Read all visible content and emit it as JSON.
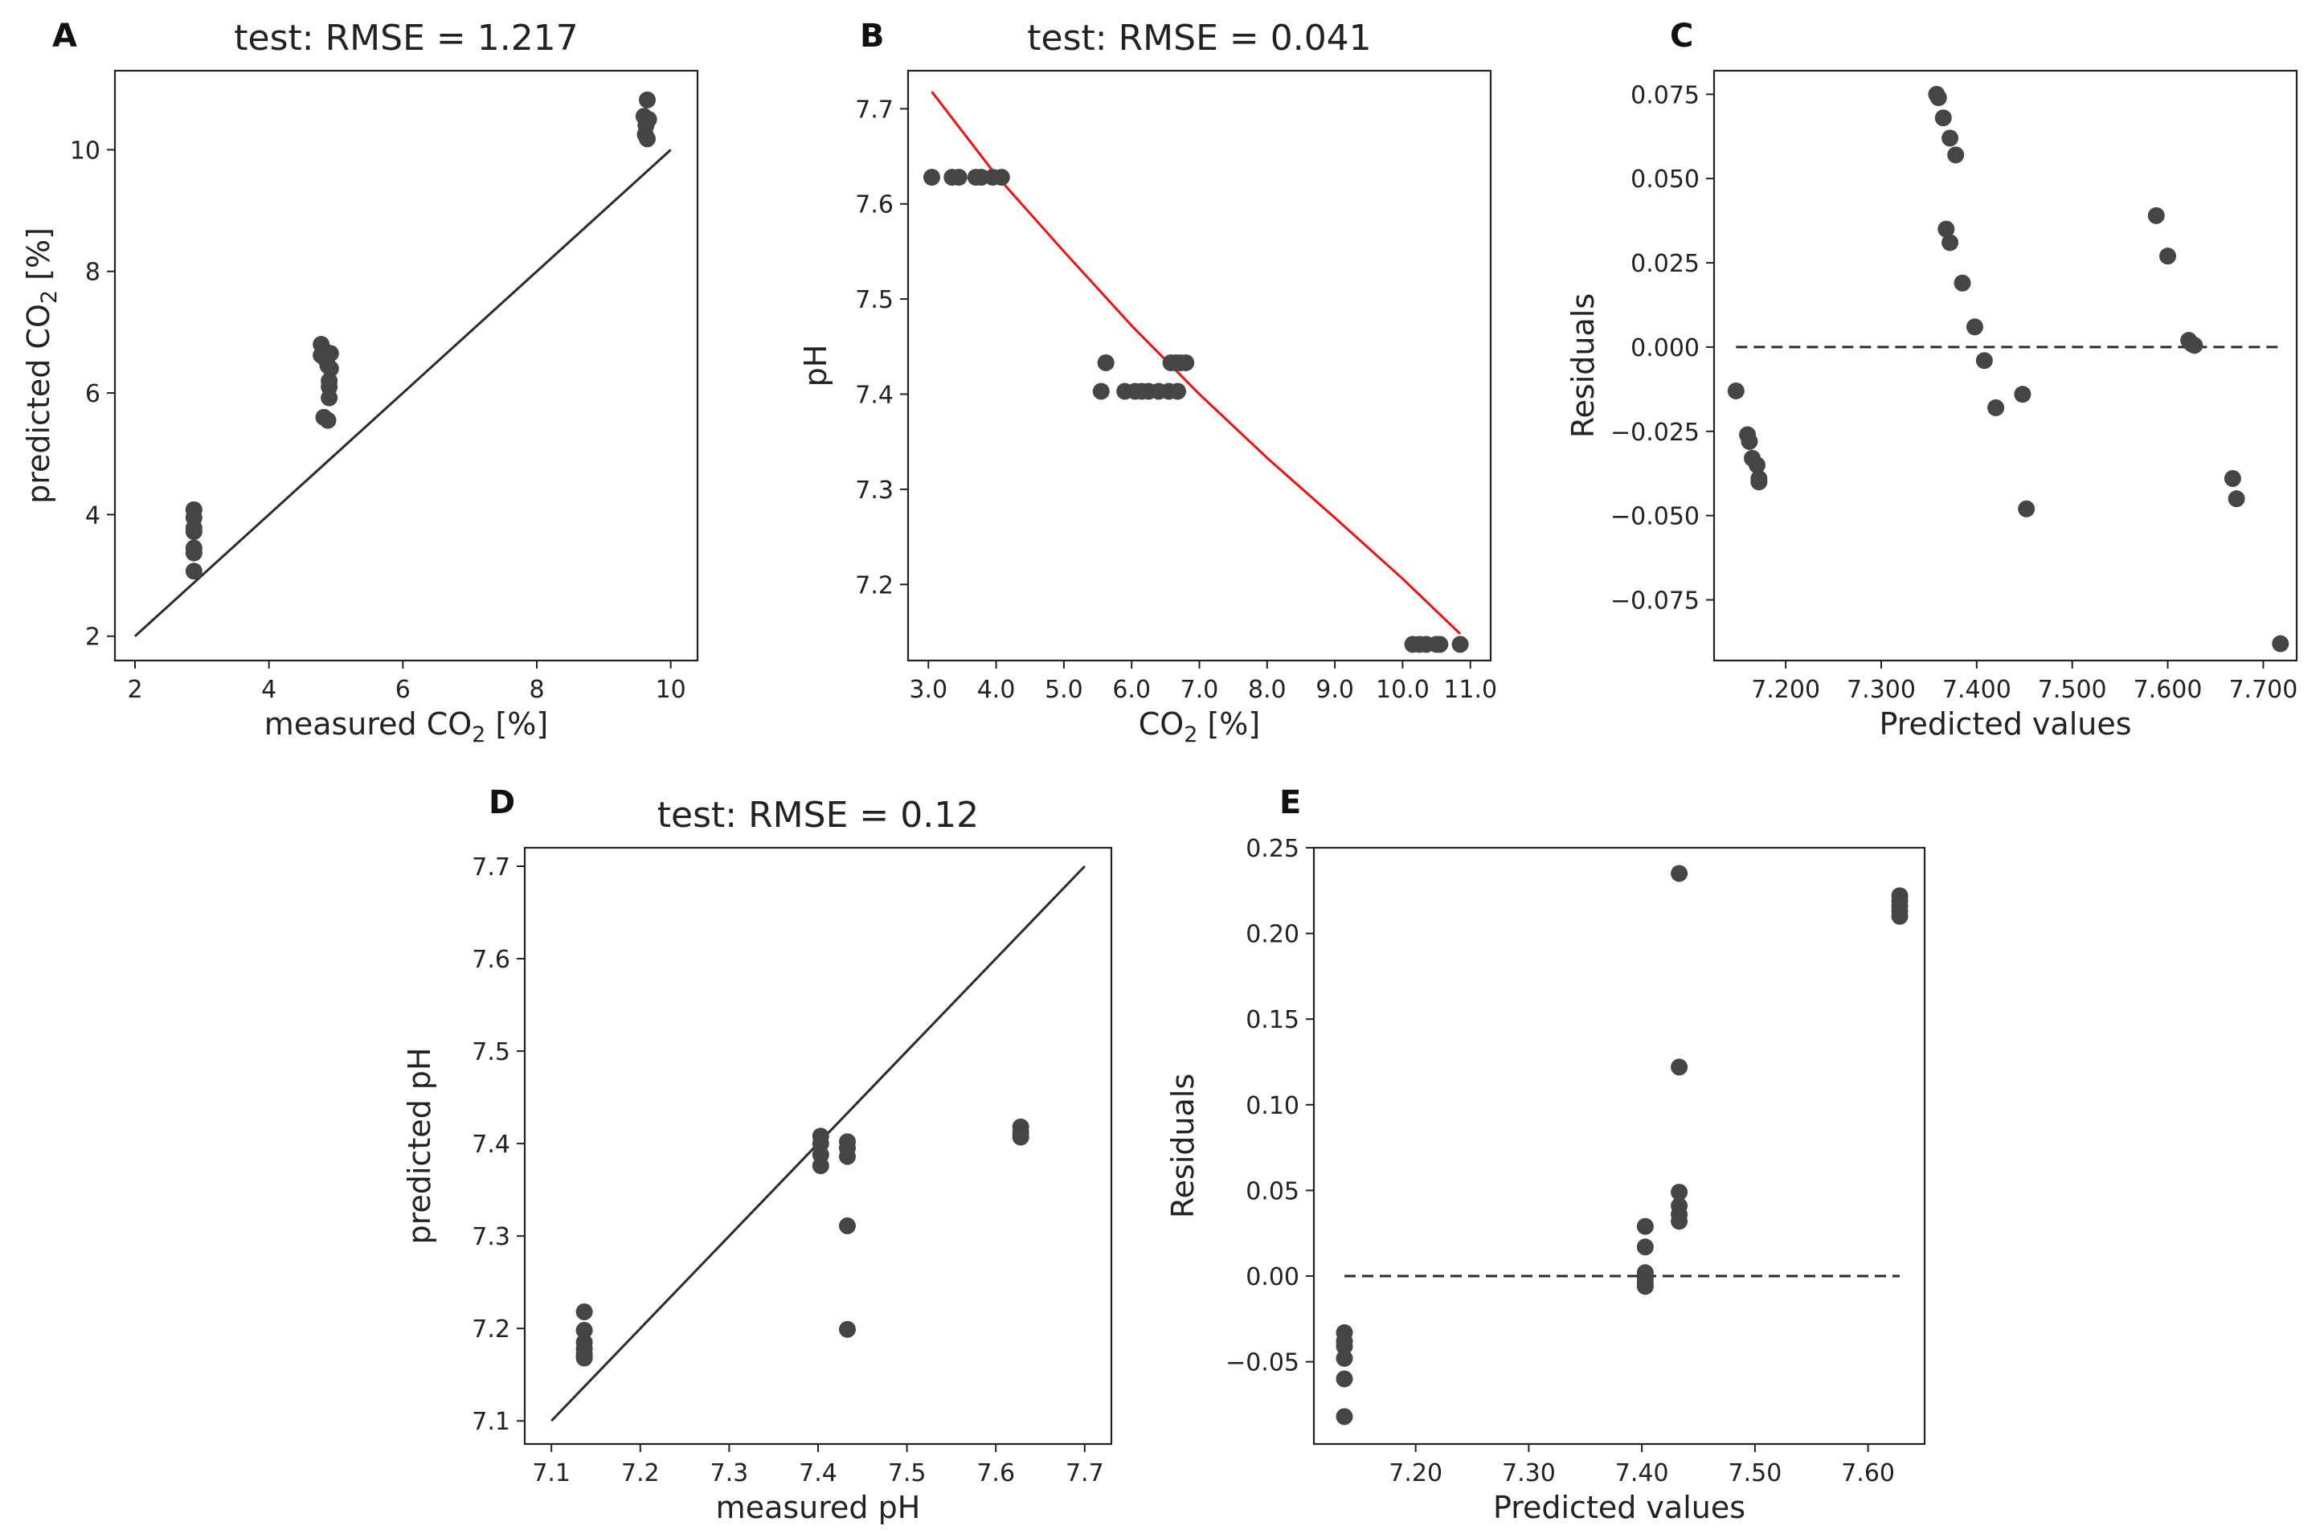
{
  "chart_data": [
    {
      "id": "A",
      "letter": "A",
      "type": "scatter",
      "title": "test: RMSE = 1.217",
      "xlabel": {
        "pre": "measured CO",
        "sub": "2",
        "post": " [%]"
      },
      "ylabel": {
        "pre": "predicted CO",
        "sub": "2",
        "post": " [%]"
      },
      "xlim": [
        1.7,
        10.4
      ],
      "ylim": [
        1.6,
        11.3
      ],
      "xticks": [
        2,
        4,
        6,
        8,
        10
      ],
      "yticks": [
        2,
        4,
        6,
        8,
        10
      ],
      "tick_decimals": 0,
      "reference_line": {
        "kind": "identity",
        "from": 2,
        "to": 10
      },
      "points": [
        [
          2.88,
          4.08
        ],
        [
          2.88,
          3.95
        ],
        [
          2.88,
          3.78
        ],
        [
          2.88,
          3.72
        ],
        [
          2.88,
          3.45
        ],
        [
          2.88,
          3.37
        ],
        [
          2.88,
          3.07
        ],
        [
          4.78,
          6.8
        ],
        [
          4.82,
          6.7
        ],
        [
          4.78,
          6.62
        ],
        [
          4.85,
          6.55
        ],
        [
          4.88,
          6.45
        ],
        [
          4.92,
          6.65
        ],
        [
          4.92,
          6.4
        ],
        [
          4.9,
          6.2
        ],
        [
          4.9,
          6.1
        ],
        [
          4.9,
          5.92
        ],
        [
          4.82,
          5.6
        ],
        [
          4.88,
          5.55
        ],
        [
          9.65,
          10.82
        ],
        [
          9.6,
          10.55
        ],
        [
          9.67,
          10.5
        ],
        [
          9.63,
          10.4
        ],
        [
          9.62,
          10.25
        ],
        [
          9.65,
          10.18
        ]
      ]
    },
    {
      "id": "B",
      "letter": "B",
      "type": "scatter",
      "title": "test: RMSE = 0.041",
      "xlabel": {
        "pre": "CO",
        "sub": "2",
        "post": " [%]"
      },
      "ylabel": {
        "pre": "pH",
        "sub": "",
        "post": ""
      },
      "xlim": [
        2.7,
        11.3
      ],
      "ylim": [
        7.12,
        7.74
      ],
      "xticks": [
        3,
        4,
        5,
        6,
        7,
        8,
        9,
        10,
        11
      ],
      "yticks": [
        7.2,
        7.3,
        7.4,
        7.5,
        7.6,
        7.7
      ],
      "tick_decimals": 1,
      "reference_line": {
        "kind": "curve",
        "color": "#ee1111",
        "points": [
          [
            3.05,
            7.718
          ],
          [
            4.0,
            7.63
          ],
          [
            5.0,
            7.55
          ],
          [
            6.0,
            7.472
          ],
          [
            7.0,
            7.4
          ],
          [
            8.0,
            7.333
          ],
          [
            9.0,
            7.27
          ],
          [
            10.0,
            7.206
          ],
          [
            10.85,
            7.148
          ]
        ]
      },
      "points": [
        [
          3.05,
          7.628
        ],
        [
          3.35,
          7.628
        ],
        [
          3.45,
          7.628
        ],
        [
          3.7,
          7.628
        ],
        [
          3.78,
          7.628
        ],
        [
          3.95,
          7.628
        ],
        [
          4.08,
          7.628
        ],
        [
          5.55,
          7.403
        ],
        [
          5.62,
          7.433
        ],
        [
          5.9,
          7.403
        ],
        [
          6.05,
          7.403
        ],
        [
          6.15,
          7.403
        ],
        [
          6.25,
          7.403
        ],
        [
          6.4,
          7.403
        ],
        [
          6.55,
          7.403
        ],
        [
          6.58,
          7.433
        ],
        [
          6.65,
          7.433
        ],
        [
          6.68,
          7.403
        ],
        [
          6.72,
          7.433
        ],
        [
          6.8,
          7.433
        ],
        [
          10.15,
          7.137
        ],
        [
          10.25,
          7.137
        ],
        [
          10.35,
          7.137
        ],
        [
          10.5,
          7.137
        ],
        [
          10.55,
          7.137
        ],
        [
          10.85,
          7.137
        ]
      ]
    },
    {
      "id": "C",
      "letter": "C",
      "type": "scatter",
      "title": "",
      "xlabel": {
        "pre": "Predicted values",
        "sub": "",
        "post": ""
      },
      "ylabel": {
        "pre": "Residuals",
        "sub": "",
        "post": ""
      },
      "xlim": [
        7.125,
        7.735
      ],
      "ylim": [
        -0.093,
        0.082
      ],
      "xticks": [
        7.2,
        7.3,
        7.4,
        7.5,
        7.6,
        7.7
      ],
      "yticks": [
        -0.075,
        -0.05,
        -0.025,
        0.0,
        0.025,
        0.05,
        0.075
      ],
      "tick_decimals": 3,
      "tick_labels_y": [
        "−0.075",
        "−0.050",
        "−0.025",
        "0.000",
        "0.025",
        "0.050",
        "0.075"
      ],
      "reference_line": {
        "kind": "hline",
        "y": 0.0,
        "from": 7.148,
        "to": 7.718,
        "dashed": true
      },
      "points": [
        [
          7.148,
          -0.013
        ],
        [
          7.16,
          -0.026
        ],
        [
          7.162,
          -0.028
        ],
        [
          7.165,
          -0.033
        ],
        [
          7.17,
          -0.035
        ],
        [
          7.172,
          -0.039
        ],
        [
          7.172,
          -0.04
        ],
        [
          7.358,
          0.075
        ],
        [
          7.36,
          0.074
        ],
        [
          7.365,
          0.068
        ],
        [
          7.372,
          0.062
        ],
        [
          7.378,
          0.057
        ],
        [
          7.368,
          0.035
        ],
        [
          7.372,
          0.031
        ],
        [
          7.385,
          0.019
        ],
        [
          7.398,
          0.006
        ],
        [
          7.408,
          -0.004
        ],
        [
          7.42,
          -0.018
        ],
        [
          7.448,
          -0.014
        ],
        [
          7.452,
          -0.048
        ],
        [
          7.588,
          0.039
        ],
        [
          7.6,
          0.027
        ],
        [
          7.622,
          0.002
        ],
        [
          7.625,
          0.001
        ],
        [
          7.628,
          0.0005
        ],
        [
          7.668,
          -0.039
        ],
        [
          7.672,
          -0.045
        ],
        [
          7.718,
          -0.088
        ]
      ]
    },
    {
      "id": "D",
      "letter": "D",
      "type": "scatter",
      "title": "test: RMSE = 0.12",
      "xlabel": {
        "pre": "measured pH",
        "sub": "",
        "post": ""
      },
      "ylabel": {
        "pre": "predicted pH",
        "sub": "",
        "post": ""
      },
      "xlim": [
        7.07,
        7.73
      ],
      "ylim": [
        7.075,
        7.72
      ],
      "xticks": [
        7.1,
        7.2,
        7.3,
        7.4,
        7.5,
        7.6,
        7.7
      ],
      "yticks": [
        7.1,
        7.2,
        7.3,
        7.4,
        7.5,
        7.6,
        7.7
      ],
      "tick_decimals": 1,
      "reference_line": {
        "kind": "identity",
        "from": 7.1,
        "to": 7.7
      },
      "points": [
        [
          7.137,
          7.218
        ],
        [
          7.137,
          7.198
        ],
        [
          7.137,
          7.185
        ],
        [
          7.137,
          7.178
        ],
        [
          7.137,
          7.172
        ],
        [
          7.137,
          7.168
        ],
        [
          7.403,
          7.408
        ],
        [
          7.403,
          7.4
        ],
        [
          7.403,
          7.388
        ],
        [
          7.403,
          7.376
        ],
        [
          7.433,
          7.402
        ],
        [
          7.433,
          7.395
        ],
        [
          7.433,
          7.386
        ],
        [
          7.433,
          7.311
        ],
        [
          7.433,
          7.199
        ],
        [
          7.628,
          7.418
        ],
        [
          7.628,
          7.412
        ],
        [
          7.628,
          7.407
        ]
      ]
    },
    {
      "id": "E",
      "letter": "E",
      "type": "scatter",
      "title": "",
      "xlabel": {
        "pre": "Predicted values",
        "sub": "",
        "post": ""
      },
      "ylabel": {
        "pre": "Residuals",
        "sub": "",
        "post": ""
      },
      "xlim": [
        7.11,
        7.65
      ],
      "ylim": [
        -0.098,
        0.25
      ],
      "xticks": [
        7.2,
        7.3,
        7.4,
        7.5,
        7.6
      ],
      "yticks": [
        -0.05,
        0.0,
        0.05,
        0.1,
        0.15,
        0.2,
        0.25
      ],
      "tick_decimals": 2,
      "tick_labels_y": [
        "−0.05",
        "0.00",
        "0.05",
        "0.10",
        "0.15",
        "0.20",
        "0.25"
      ],
      "reference_line": {
        "kind": "hline",
        "y": 0.0,
        "from": 7.137,
        "to": 7.628,
        "dashed": true
      },
      "points": [
        [
          7.137,
          -0.033
        ],
        [
          7.137,
          -0.038
        ],
        [
          7.137,
          -0.041
        ],
        [
          7.137,
          -0.048
        ],
        [
          7.137,
          -0.06
        ],
        [
          7.137,
          -0.082
        ],
        [
          7.403,
          0.029
        ],
        [
          7.403,
          0.017
        ],
        [
          7.403,
          0.002
        ],
        [
          7.403,
          -0.001
        ],
        [
          7.403,
          -0.004
        ],
        [
          7.403,
          -0.006
        ],
        [
          7.433,
          0.235
        ],
        [
          7.433,
          0.122
        ],
        [
          7.433,
          0.049
        ],
        [
          7.433,
          0.041
        ],
        [
          7.433,
          0.036
        ],
        [
          7.433,
          0.032
        ],
        [
          7.628,
          0.222
        ],
        [
          7.628,
          0.219
        ],
        [
          7.628,
          0.216
        ],
        [
          7.628,
          0.213
        ],
        [
          7.628,
          0.21
        ]
      ]
    }
  ],
  "colors": {
    "point": "#454545",
    "line": "#2b2b2b",
    "curve": "#ee1111",
    "axis": "#222222"
  }
}
